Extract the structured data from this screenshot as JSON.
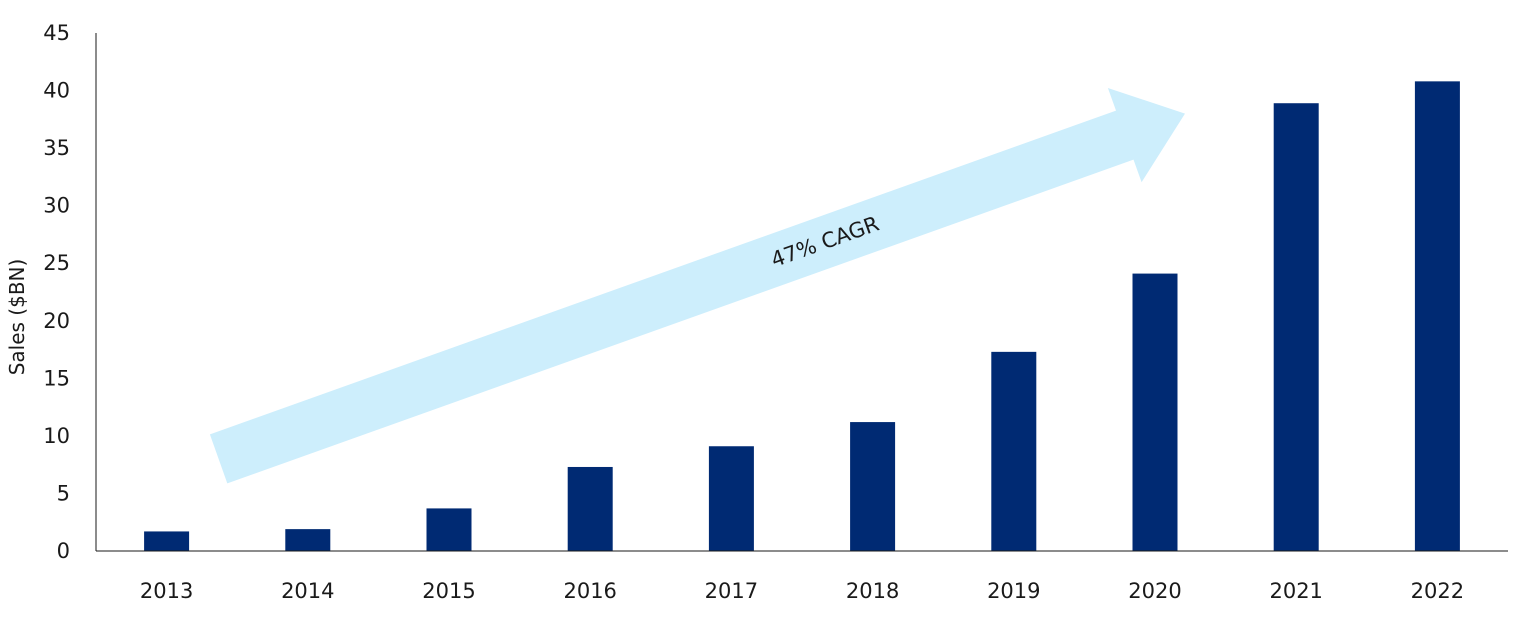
{
  "chart_data": {
    "type": "bar",
    "categories": [
      "2013",
      "2014",
      "2015",
      "2016",
      "2017",
      "2018",
      "2019",
      "2020",
      "2021",
      "2022"
    ],
    "values": [
      1.7,
      1.9,
      3.7,
      7.3,
      9.1,
      11.2,
      17.3,
      24.1,
      38.9,
      40.8
    ],
    "ylabel": "Sales ($BN)",
    "xlabel": "",
    "ylim": [
      0,
      45
    ],
    "yticks": [
      0,
      5,
      10,
      15,
      20,
      25,
      30,
      35,
      40,
      45
    ],
    "grid": false,
    "legend": "none",
    "bar_color": "#002a73",
    "annotation": {
      "text": "47% CAGR",
      "arrow_color": "#cdeefc",
      "from": {
        "x": "2013",
        "y": 8
      },
      "to": {
        "x": "2020",
        "y": 38
      }
    }
  }
}
